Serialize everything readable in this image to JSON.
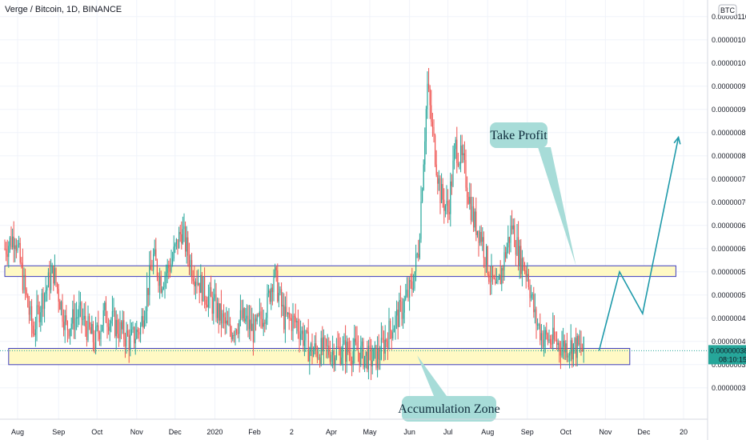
{
  "title": "Verge / Bitcoin, 1D, BINANCE",
  "currency_badge": "BTC",
  "chart_data": {
    "type": "candlestick",
    "symbol": "Verge / Bitcoin",
    "interval": "1D",
    "exchange": "BINANCE",
    "ylim": [
      2.6e-07,
      1.11e-06
    ],
    "y_ticks": [
      {
        "value": 3e-07,
        "label": "0.00000030"
      },
      {
        "value": 3.5e-07,
        "label": "0.00000035"
      },
      {
        "value": 4e-07,
        "label": "0.00000040"
      },
      {
        "value": 4.5e-07,
        "label": "0.00000045"
      },
      {
        "value": 5e-07,
        "label": "0.00000050"
      },
      {
        "value": 5.5e-07,
        "label": "0.00000055"
      },
      {
        "value": 6e-07,
        "label": "0.00000060"
      },
      {
        "value": 6.5e-07,
        "label": "0.00000065"
      },
      {
        "value": 7e-07,
        "label": "0.00000070"
      },
      {
        "value": 7.5e-07,
        "label": "0.00000075"
      },
      {
        "value": 8e-07,
        "label": "0.00000080"
      },
      {
        "value": 8.5e-07,
        "label": "0.00000085"
      },
      {
        "value": 9e-07,
        "label": "0.00000090"
      },
      {
        "value": 9.5e-07,
        "label": "0.00000095"
      },
      {
        "value": 1e-06,
        "label": "0.00000100"
      },
      {
        "value": 1.05e-06,
        "label": "0.00000105"
      },
      {
        "value": 1.1e-06,
        "label": "0.00000110"
      }
    ],
    "x_ticks": [
      {
        "label": "Aug",
        "day": 10
      },
      {
        "label": "Sep",
        "day": 42
      },
      {
        "label": "Oct",
        "day": 72
      },
      {
        "label": "Nov",
        "day": 103
      },
      {
        "label": "Dec",
        "day": 133
      },
      {
        "label": "2020",
        "day": 164
      },
      {
        "label": "Feb",
        "day": 195
      },
      {
        "label": "2",
        "day": 224
      },
      {
        "label": "Apr",
        "day": 255
      },
      {
        "label": "May",
        "day": 285
      },
      {
        "label": "Jun",
        "day": 316
      },
      {
        "label": "Jul",
        "day": 346
      },
      {
        "label": "Aug",
        "day": 377
      },
      {
        "label": "Sep",
        "day": 408
      },
      {
        "label": "Oct",
        "day": 438
      },
      {
        "label": "Nov",
        "day": 469
      },
      {
        "label": "Dec",
        "day": 499
      },
      {
        "label": "20",
        "day": 530
      }
    ],
    "waypoints": [
      {
        "day": 0,
        "price": 6e-07
      },
      {
        "day": 8,
        "price": 6.3e-07
      },
      {
        "day": 15,
        "price": 5.2e-07
      },
      {
        "day": 22,
        "price": 4.2e-07
      },
      {
        "day": 30,
        "price": 5e-07
      },
      {
        "day": 38,
        "price": 5.5e-07
      },
      {
        "day": 48,
        "price": 4.3e-07
      },
      {
        "day": 58,
        "price": 4.6e-07
      },
      {
        "day": 70,
        "price": 4e-07
      },
      {
        "day": 78,
        "price": 4.6e-07
      },
      {
        "day": 88,
        "price": 4.3e-07
      },
      {
        "day": 98,
        "price": 4e-07
      },
      {
        "day": 106,
        "price": 4.3e-07
      },
      {
        "day": 116,
        "price": 5.8e-07
      },
      {
        "day": 122,
        "price": 5.3e-07
      },
      {
        "day": 130,
        "price": 5.7e-07
      },
      {
        "day": 138,
        "price": 6.4e-07
      },
      {
        "day": 146,
        "price": 5.6e-07
      },
      {
        "day": 155,
        "price": 5.1e-07
      },
      {
        "day": 165,
        "price": 4.7e-07
      },
      {
        "day": 175,
        "price": 4.2e-07
      },
      {
        "day": 185,
        "price": 4.5e-07
      },
      {
        "day": 195,
        "price": 4.2e-07
      },
      {
        "day": 205,
        "price": 4.8e-07
      },
      {
        "day": 210,
        "price": 5.5e-07
      },
      {
        "day": 218,
        "price": 4.5e-07
      },
      {
        "day": 228,
        "price": 4.4e-07
      },
      {
        "day": 238,
        "price": 3.8e-07
      },
      {
        "day": 250,
        "price": 3.8e-07
      },
      {
        "day": 262,
        "price": 3.8e-07
      },
      {
        "day": 275,
        "price": 3.8e-07
      },
      {
        "day": 285,
        "price": 3.6e-07
      },
      {
        "day": 292,
        "price": 3.7e-07
      },
      {
        "day": 300,
        "price": 4.2e-07
      },
      {
        "day": 310,
        "price": 4.7e-07
      },
      {
        "day": 318,
        "price": 5.2e-07
      },
      {
        "day": 323,
        "price": 6e-07
      },
      {
        "day": 327,
        "price": 8e-07
      },
      {
        "day": 330,
        "price": 9.5e-07
      },
      {
        "day": 334,
        "price": 8.5e-07
      },
      {
        "day": 340,
        "price": 7.2e-07
      },
      {
        "day": 346,
        "price": 6.8e-07
      },
      {
        "day": 352,
        "price": 8.2e-07
      },
      {
        "day": 358,
        "price": 7.8e-07
      },
      {
        "day": 366,
        "price": 6.6e-07
      },
      {
        "day": 372,
        "price": 6.3e-07
      },
      {
        "day": 378,
        "price": 5.5e-07
      },
      {
        "day": 384,
        "price": 5e-07
      },
      {
        "day": 390,
        "price": 5.8e-07
      },
      {
        "day": 396,
        "price": 6.5e-07
      },
      {
        "day": 402,
        "price": 5.8e-07
      },
      {
        "day": 408,
        "price": 5.5e-07
      },
      {
        "day": 414,
        "price": 4.5e-07
      },
      {
        "day": 420,
        "price": 4.1e-07
      },
      {
        "day": 428,
        "price": 4e-07
      },
      {
        "day": 436,
        "price": 3.9e-07
      },
      {
        "day": 444,
        "price": 3.9e-07
      },
      {
        "day": 452,
        "price": 3.8e-07
      }
    ],
    "zones": [
      {
        "name": "resistance-zone",
        "from": 5.4e-07,
        "to": 5.63e-07,
        "start_day": 0,
        "end_day": 524
      },
      {
        "name": "accumulation-zone",
        "from": 3.5e-07,
        "to": 3.85e-07,
        "start_day": 3,
        "end_day": 488
      }
    ],
    "forecast_path": [
      {
        "day": 464,
        "price": 3.8e-07
      },
      {
        "day": 480,
        "price": 5.5e-07
      },
      {
        "day": 498,
        "price": 4.6e-07
      },
      {
        "day": 526,
        "price": 8.4e-07
      }
    ],
    "annotations": [
      {
        "text": "Take Profit",
        "pointer": {
          "day": 446,
          "price": 5.63e-07
        }
      },
      {
        "text": "Accumulation Zone",
        "pointer": {
          "day": 322,
          "price": 3.7e-07
        }
      }
    ],
    "last_price": {
      "value": 3.8e-07,
      "label": "0.00000038",
      "countdown": "08:10:15"
    },
    "colors": {
      "up": "#26a69a",
      "down": "#ef5350",
      "zone_fill": "#fff9c4",
      "zone_border": "#3f3fbf",
      "forecast": "#1e9aaa",
      "callout_fill": "#a7dcd8",
      "grid": "#f0f3fa"
    }
  }
}
